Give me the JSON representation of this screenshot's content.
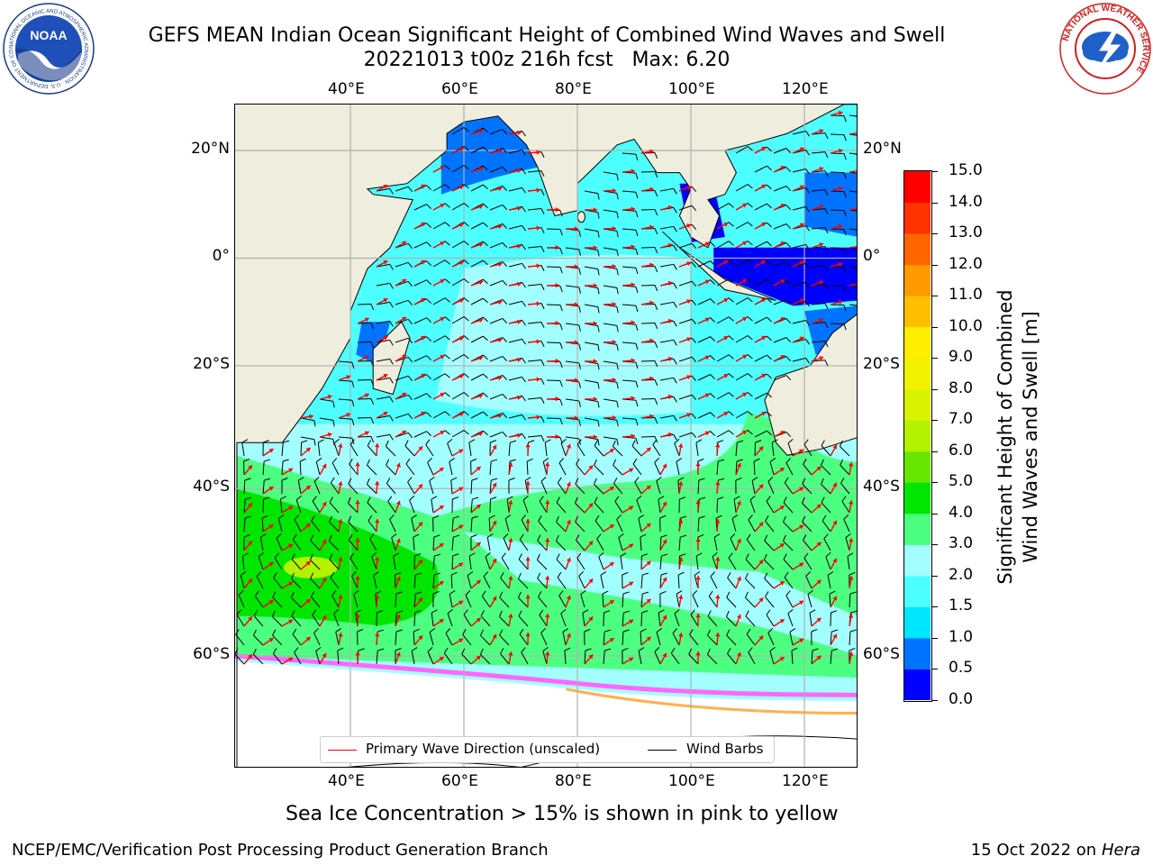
{
  "title": {
    "line1": "GEFS MEAN Indian Ocean Significant Height of Combined Wind Waves and Swell",
    "line2": "20221013 t00z 216h fcst   Max: 6.20"
  },
  "logos": {
    "left": {
      "text": "NOAA",
      "ring_text": "NATIONAL OCEANIC AND ATMOSPHERIC ADMINISTRATION · U.S. DEPARTMENT OF COMMERCE"
    },
    "right": {
      "ring_text": "NATIONAL WEATHER SERVICE"
    }
  },
  "map": {
    "lon_labels": [
      "40°E",
      "60°E",
      "80°E",
      "100°E",
      "120°E"
    ],
    "lat_labels": [
      "20°N",
      "0°",
      "20°S",
      "40°S",
      "60°S"
    ],
    "lon_values": [
      40,
      60,
      80,
      100,
      120
    ],
    "lat_values": [
      20,
      0,
      -20,
      -40,
      -60
    ],
    "extent": {
      "lon": [
        20,
        130
      ],
      "lat": [
        -72,
        28
      ]
    },
    "colors": {
      "land": "#efeddd",
      "grid": "#b0b0b0",
      "wave_arrow": "#ff0000",
      "wind_barb": "#000000",
      "sea_ice": "#ff66ff"
    }
  },
  "colorbar": {
    "label_line1": "Significant Height of Combined",
    "label_line2": "Wind Waves and Swell [m]",
    "bounds": [
      0.0,
      0.5,
      1.0,
      1.5,
      2.0,
      3.0,
      4.0,
      5.0,
      6.0,
      7.0,
      8.0,
      9.0,
      10.0,
      11.0,
      12.0,
      13.0,
      14.0,
      15.0
    ],
    "tick_labels": [
      "0.0",
      "0.5",
      "1.0",
      "1.5",
      "2.0",
      "3.0",
      "4.0",
      "5.0",
      "6.0",
      "7.0",
      "8.0",
      "9.0",
      "10.0",
      "11.0",
      "12.0",
      "13.0",
      "14.0",
      "15.0"
    ],
    "colors": [
      "#0000ff",
      "#0073ff",
      "#00e6ff",
      "#4dffff",
      "#a3ffff",
      "#4dff80",
      "#00e600",
      "#66e600",
      "#b3f200",
      "#d9f200",
      "#f2f200",
      "#ffee00",
      "#ffbf00",
      "#ff9900",
      "#ff6600",
      "#ff3300",
      "#ff0000"
    ]
  },
  "legend": {
    "primary_wave_label": "Primary Wave Direction (unscaled)",
    "wind_barbs_label": "Wind Barbs"
  },
  "caption": "Sea Ice Concentration > 15% is shown in pink to yellow",
  "footer": {
    "left": "NCEP/EMC/Verification Post Processing Product Generation Branch",
    "date": "15 Oct 2022 on",
    "machine": "Hera"
  }
}
